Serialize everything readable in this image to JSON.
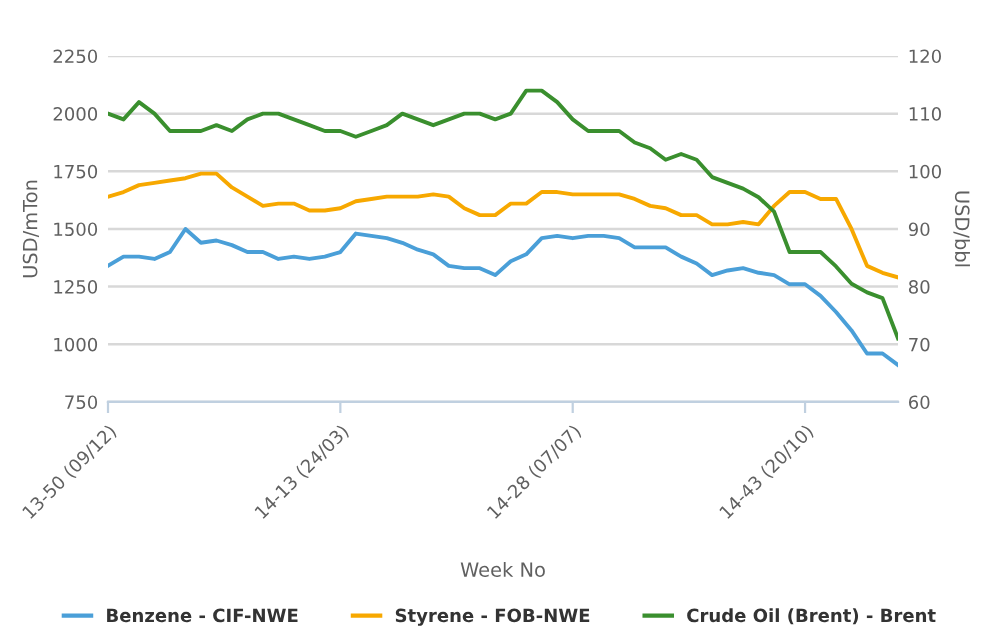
{
  "chart_data": {
    "type": "line",
    "xlabel": "Week No",
    "ylabel": "USD/mTon",
    "y2label": "USD/bbl",
    "categories": [
      "13-50 (09/12)",
      null,
      null,
      null,
      null,
      null,
      null,
      null,
      null,
      null,
      null,
      null,
      null,
      null,
      null,
      "14-13 (24/03)",
      null,
      null,
      null,
      null,
      null,
      null,
      null,
      null,
      null,
      null,
      null,
      null,
      null,
      null,
      "14-28 (07/07)",
      null,
      null,
      null,
      null,
      null,
      null,
      null,
      null,
      null,
      null,
      null,
      null,
      null,
      null,
      "14-43 (20/10)",
      null,
      null,
      null,
      null,
      null,
      null
    ],
    "series": [
      {
        "name": "Benzene - CIF-NWE",
        "color": "#4a9fd8",
        "values": [
          1340,
          1380,
          1380,
          1370,
          1400,
          1500,
          1440,
          1450,
          1430,
          1400,
          1400,
          1370,
          1380,
          1370,
          1380,
          1400,
          1480,
          1470,
          1460,
          1440,
          1410,
          1390,
          1340,
          1330,
          1330,
          1300,
          1360,
          1390,
          1460,
          1470,
          1460,
          1470,
          1470,
          1460,
          1420,
          1420,
          1420,
          1380,
          1350,
          1300,
          1320,
          1330,
          1310,
          1300,
          1260,
          1260,
          1210,
          1140,
          1060,
          960,
          960,
          910
        ]
      },
      {
        "name": "Styrene - FOB-NWE",
        "color": "#f7a800",
        "values": [
          1640,
          1660,
          1690,
          1700,
          1710,
          1720,
          1740,
          1740,
          1680,
          1640,
          1600,
          1610,
          1610,
          1580,
          1580,
          1590,
          1620,
          1630,
          1640,
          1640,
          1640,
          1650,
          1640,
          1590,
          1560,
          1560,
          1610,
          1610,
          1660,
          1660,
          1650,
          1650,
          1650,
          1650,
          1630,
          1600,
          1590,
          1560,
          1560,
          1520,
          1520,
          1530,
          1520,
          1600,
          1660,
          1660,
          1630,
          1630,
          1500,
          1340,
          1310,
          1290
        ]
      },
      {
        "name": "Crude Oil (Brent) - Brent",
        "color": "#3a8f2e",
        "axis": "y2",
        "values": [
          110,
          109,
          112,
          110,
          107,
          107,
          107,
          108,
          107,
          109,
          110,
          110,
          109,
          108,
          107,
          107,
          106,
          107,
          108,
          110,
          109,
          108,
          109,
          110,
          110,
          109,
          110,
          114,
          114,
          112,
          109,
          107,
          107,
          107,
          105,
          104,
          102,
          103,
          102,
          99,
          98,
          97,
          95.5,
          93,
          86,
          86,
          86,
          83.5,
          80.5,
          79,
          78,
          71
        ]
      }
    ],
    "ylim": [
      750,
      2250
    ],
    "yticks": [
      750,
      1000,
      1250,
      1500,
      1750,
      2000,
      2250
    ],
    "y2lim": [
      60,
      120
    ],
    "y2ticks": [
      60,
      70,
      80,
      90,
      100,
      110,
      120
    ],
    "grid": "y",
    "legend": "bottom",
    "marker": "none",
    "line_style": "solid"
  }
}
